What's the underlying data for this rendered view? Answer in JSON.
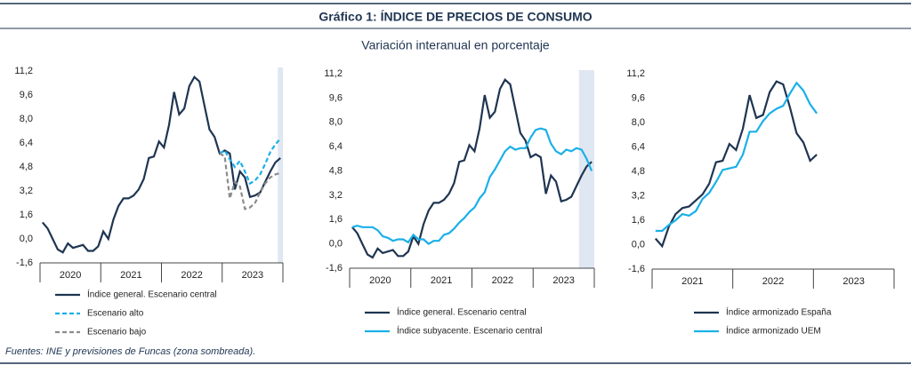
{
  "title": "Gráfico 1: ÍNDICE DE PRECIOS DE CONSUMO",
  "subtitle": "Variación interanual en porcentaje",
  "source": "Fuentes: INE y previsiones de Funcas (zona sombreada).",
  "chart_data": [
    {
      "type": "line",
      "groups": [
        "2020",
        "2021",
        "2022",
        "2023"
      ],
      "shaded_from": 47,
      "ylim": [
        -1.6,
        11.2
      ],
      "yticks": [
        {
          "value": -1.6,
          "label": "-1,6"
        },
        {
          "value": 0,
          "label": "0,0"
        },
        {
          "value": 1.6,
          "label": "1,6"
        },
        {
          "value": 3.2,
          "label": "3,2"
        },
        {
          "value": 4.8,
          "label": "4,8"
        },
        {
          "value": 6.4,
          "label": "6,4"
        },
        {
          "value": 8.0,
          "label": "8,0"
        },
        {
          "value": 9.6,
          "label": "9,6"
        },
        {
          "value": 11.2,
          "label": "11,2"
        }
      ],
      "series": [
        {
          "name": "Índice general. Escenario central",
          "color": "#1f3552",
          "dashed": false,
          "values": [
            1.1,
            0.7,
            0.0,
            -0.7,
            -0.9,
            -0.3,
            -0.6,
            -0.5,
            -0.4,
            -0.8,
            -0.8,
            -0.5,
            0.5,
            0.0,
            1.3,
            2.2,
            2.7,
            2.7,
            2.9,
            3.3,
            4.0,
            5.4,
            5.5,
            6.5,
            6.1,
            7.6,
            9.8,
            8.3,
            8.7,
            10.2,
            10.8,
            10.5,
            8.9,
            7.3,
            6.8,
            5.7,
            5.9,
            5.7,
            3.3,
            4.5,
            4.1,
            2.8,
            2.9,
            3.1,
            3.8,
            4.5,
            5.1,
            5.4
          ]
        },
        {
          "name": "Escenario alto",
          "color": "#1ab0e8",
          "dashed": true,
          "values": [
            null,
            null,
            null,
            null,
            null,
            null,
            null,
            null,
            null,
            null,
            null,
            null,
            null,
            null,
            null,
            null,
            null,
            null,
            null,
            null,
            null,
            null,
            null,
            null,
            null,
            null,
            null,
            null,
            null,
            null,
            null,
            null,
            null,
            null,
            null,
            5.7,
            5.9,
            5.3,
            4.8,
            5.2,
            4.5,
            3.7,
            3.9,
            4.3,
            5.0,
            5.8,
            6.3,
            6.7
          ]
        },
        {
          "name": "Escenario bajo",
          "color": "#8c8c8c",
          "dashed": true,
          "values": [
            null,
            null,
            null,
            null,
            null,
            null,
            null,
            null,
            null,
            null,
            null,
            null,
            null,
            null,
            null,
            null,
            null,
            null,
            null,
            null,
            null,
            null,
            null,
            null,
            null,
            null,
            null,
            null,
            null,
            null,
            null,
            null,
            null,
            null,
            null,
            5.7,
            5.5,
            2.7,
            3.8,
            3.5,
            2.0,
            2.1,
            2.4,
            3.1,
            3.7,
            4.1,
            4.3,
            4.4
          ]
        }
      ]
    },
    {
      "type": "line",
      "groups": [
        "2020",
        "2021",
        "2022",
        "2023"
      ],
      "shaded_from": 45,
      "ylim": [
        -1.6,
        11.2
      ],
      "yticks": [
        {
          "value": -1.6,
          "label": "-1,6"
        },
        {
          "value": 0,
          "label": "0,0"
        },
        {
          "value": 1.6,
          "label": "1,6"
        },
        {
          "value": 3.2,
          "label": "3,2"
        },
        {
          "value": 4.8,
          "label": "4,8"
        },
        {
          "value": 6.4,
          "label": "6,4"
        },
        {
          "value": 8.0,
          "label": "8,0"
        },
        {
          "value": 9.6,
          "label": "9,6"
        },
        {
          "value": 11.2,
          "label": "11,2"
        }
      ],
      "series": [
        {
          "name": "Índice general. Escenario central",
          "color": "#1f3552",
          "dashed": false,
          "values": [
            1.1,
            0.7,
            0.0,
            -0.7,
            -0.9,
            -0.3,
            -0.6,
            -0.5,
            -0.4,
            -0.8,
            -0.8,
            -0.5,
            0.5,
            0.0,
            1.3,
            2.2,
            2.7,
            2.7,
            2.9,
            3.3,
            4.0,
            5.4,
            5.5,
            6.5,
            6.1,
            7.6,
            9.8,
            8.3,
            8.7,
            10.2,
            10.8,
            10.5,
            8.9,
            7.3,
            6.8,
            5.7,
            5.9,
            5.7,
            3.3,
            4.5,
            4.1,
            2.8,
            2.9,
            3.1,
            3.8,
            4.5,
            5.1,
            5.4
          ]
        },
        {
          "name": "Índice subyacente. Escenario central",
          "color": "#1ab0e8",
          "dashed": false,
          "values": [
            1.1,
            1.2,
            1.1,
            1.1,
            1.1,
            0.9,
            0.5,
            0.4,
            0.2,
            0.3,
            0.3,
            0.1,
            0.6,
            0.3,
            0.3,
            0.0,
            0.2,
            0.2,
            0.6,
            0.7,
            1.0,
            1.4,
            1.7,
            2.1,
            2.4,
            3.0,
            3.4,
            4.4,
            4.9,
            5.5,
            6.1,
            6.4,
            6.2,
            6.3,
            6.3,
            7.0,
            7.5,
            7.6,
            7.5,
            6.6,
            6.1,
            5.9,
            6.2,
            6.1,
            6.3,
            6.2,
            5.6,
            4.8
          ]
        }
      ]
    },
    {
      "type": "line",
      "groups": [
        "2021",
        "2022",
        "2023"
      ],
      "ylim": [
        -1.6,
        11.2
      ],
      "yticks": [
        {
          "value": -1.6,
          "label": "-1,6"
        },
        {
          "value": 0,
          "label": "0,0"
        },
        {
          "value": 1.6,
          "label": "1,6"
        },
        {
          "value": 3.2,
          "label": "3,2"
        },
        {
          "value": 4.8,
          "label": "4,8"
        },
        {
          "value": 6.4,
          "label": "6,4"
        },
        {
          "value": 8.0,
          "label": "8,0"
        },
        {
          "value": 9.6,
          "label": "9,6"
        },
        {
          "value": 11.2,
          "label": "11,2"
        }
      ],
      "series": [
        {
          "name": "Índice armonizado España",
          "color": "#1f3552",
          "dashed": false,
          "values": [
            0.4,
            -0.1,
            1.2,
            2.0,
            2.4,
            2.5,
            2.9,
            3.3,
            4.0,
            5.4,
            5.5,
            6.6,
            6.2,
            7.6,
            9.8,
            8.3,
            8.5,
            10.0,
            10.7,
            10.5,
            9.0,
            7.3,
            6.7,
            5.5,
            5.9,
            null,
            null,
            null,
            null,
            null,
            null,
            null,
            null,
            null,
            null,
            null
          ]
        },
        {
          "name": "Índice armonizado UEM",
          "color": "#1ab0e8",
          "dashed": false,
          "values": [
            0.9,
            0.9,
            1.3,
            1.6,
            2.0,
            1.9,
            2.2,
            3.0,
            3.4,
            4.1,
            4.9,
            5.0,
            5.1,
            5.9,
            7.4,
            7.4,
            8.1,
            8.6,
            8.9,
            9.1,
            9.9,
            10.6,
            10.1,
            9.2,
            8.6,
            null,
            null,
            null,
            null,
            null,
            null,
            null,
            null,
            null,
            null,
            null
          ]
        }
      ]
    }
  ]
}
